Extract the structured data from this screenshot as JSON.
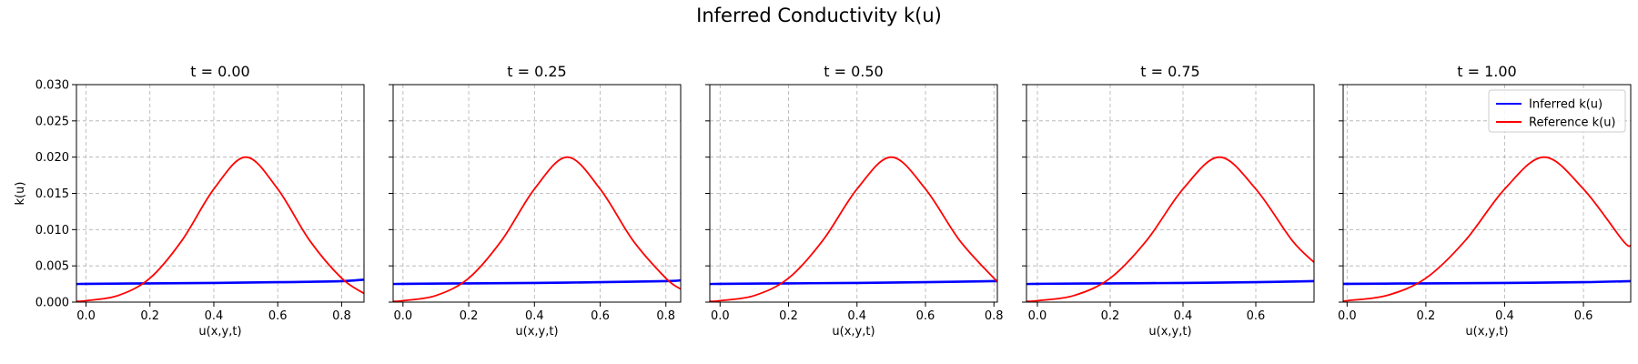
{
  "figure": {
    "suptitle": "Inferred Conductivity k(u)"
  },
  "chart_data": [
    {
      "type": "line",
      "title": "t = 0.00",
      "xlabel": "u(x,y,t)",
      "ylabel": "k(u)",
      "xlim": [
        -0.03,
        0.87
      ],
      "ylim": [
        0,
        0.03
      ],
      "xticks": [
        0.0,
        0.2,
        0.4,
        0.6,
        0.8
      ],
      "xtick_labels": [
        "0.0",
        "0.2",
        "0.4",
        "0.6",
        "0.8"
      ],
      "yticks": [
        0.0,
        0.005,
        0.01,
        0.015,
        0.02,
        0.025,
        0.03
      ],
      "ytick_labels": [
        "0.000",
        "0.005",
        "0.010",
        "0.015",
        "0.020",
        "0.025",
        "0.030"
      ],
      "grid": true,
      "legend": null,
      "series": [
        {
          "name": "Inferred k(u)",
          "color": "#0000ff",
          "x": [
            -0.03,
            0.0,
            0.2,
            0.4,
            0.6,
            0.8,
            0.87
          ],
          "y": [
            0.0025,
            0.00252,
            0.00258,
            0.00265,
            0.00275,
            0.0029,
            0.0031
          ]
        },
        {
          "name": "Reference k(u)",
          "color": "#ff0000",
          "x": [
            -0.03,
            0.0,
            0.1,
            0.2,
            0.3,
            0.4,
            0.5,
            0.6,
            0.7,
            0.8,
            0.87
          ],
          "y": [
            0.0001,
            0.0002,
            0.0009,
            0.0033,
            0.0085,
            0.0156,
            0.02,
            0.0156,
            0.0085,
            0.0033,
            0.0012
          ]
        }
      ]
    },
    {
      "type": "line",
      "title": "t = 0.25",
      "xlabel": "u(x,y,t)",
      "ylabel": "",
      "xlim": [
        -0.03,
        0.845
      ],
      "ylim": [
        0,
        0.03
      ],
      "xticks": [
        0.0,
        0.2,
        0.4,
        0.6,
        0.8
      ],
      "xtick_labels": [
        "0.0",
        "0.2",
        "0.4",
        "0.6",
        "0.8"
      ],
      "yticks": [
        0.0,
        0.005,
        0.01,
        0.015,
        0.02,
        0.025,
        0.03
      ],
      "ytick_labels": [],
      "grid": true,
      "legend": null,
      "series": [
        {
          "name": "Inferred k(u)",
          "color": "#0000ff",
          "x": [
            -0.03,
            0.0,
            0.2,
            0.4,
            0.6,
            0.8,
            0.845
          ],
          "y": [
            0.0025,
            0.00252,
            0.00258,
            0.00265,
            0.00275,
            0.0029,
            0.003
          ]
        },
        {
          "name": "Reference k(u)",
          "color": "#ff0000",
          "x": [
            -0.03,
            0.0,
            0.1,
            0.2,
            0.3,
            0.4,
            0.5,
            0.6,
            0.7,
            0.8,
            0.845
          ],
          "y": [
            0.0001,
            0.0002,
            0.0009,
            0.0033,
            0.0085,
            0.0156,
            0.02,
            0.0156,
            0.0085,
            0.0033,
            0.0018
          ]
        }
      ]
    },
    {
      "type": "line",
      "title": "t = 0.50",
      "xlabel": "u(x,y,t)",
      "ylabel": "",
      "xlim": [
        -0.03,
        0.81
      ],
      "ylim": [
        0,
        0.03
      ],
      "xticks": [
        0.0,
        0.2,
        0.4,
        0.6,
        0.8
      ],
      "xtick_labels": [
        "0.0",
        "0.2",
        "0.4",
        "0.6",
        "0.8"
      ],
      "yticks": [
        0.0,
        0.005,
        0.01,
        0.015,
        0.02,
        0.025,
        0.03
      ],
      "ytick_labels": [],
      "grid": true,
      "legend": null,
      "series": [
        {
          "name": "Inferred k(u)",
          "color": "#0000ff",
          "x": [
            -0.03,
            0.0,
            0.2,
            0.4,
            0.6,
            0.8,
            0.81
          ],
          "y": [
            0.0025,
            0.00252,
            0.00258,
            0.00265,
            0.00275,
            0.0029,
            0.003
          ]
        },
        {
          "name": "Reference k(u)",
          "color": "#ff0000",
          "x": [
            -0.03,
            0.0,
            0.1,
            0.2,
            0.3,
            0.4,
            0.5,
            0.6,
            0.7,
            0.8,
            0.81
          ],
          "y": [
            0.0001,
            0.0002,
            0.0009,
            0.0033,
            0.0085,
            0.0156,
            0.02,
            0.0156,
            0.0085,
            0.0033,
            0.003
          ]
        }
      ]
    },
    {
      "type": "line",
      "title": "t = 0.75",
      "xlabel": "u(x,y,t)",
      "ylabel": "",
      "xlim": [
        -0.03,
        0.76
      ],
      "ylim": [
        0,
        0.03
      ],
      "xticks": [
        0.0,
        0.2,
        0.4,
        0.6
      ],
      "xtick_labels": [
        "0.0",
        "0.2",
        "0.4",
        "0.6"
      ],
      "yticks": [
        0.0,
        0.005,
        0.01,
        0.015,
        0.02,
        0.025,
        0.03
      ],
      "ytick_labels": [],
      "grid": true,
      "legend": null,
      "series": [
        {
          "name": "Inferred k(u)",
          "color": "#0000ff",
          "x": [
            -0.03,
            0.0,
            0.2,
            0.4,
            0.6,
            0.76
          ],
          "y": [
            0.0025,
            0.00252,
            0.00258,
            0.00265,
            0.00275,
            0.0029
          ]
        },
        {
          "name": "Reference k(u)",
          "color": "#ff0000",
          "x": [
            -0.03,
            0.0,
            0.1,
            0.2,
            0.3,
            0.4,
            0.5,
            0.6,
            0.7,
            0.76
          ],
          "y": [
            0.0001,
            0.0002,
            0.0009,
            0.0033,
            0.0085,
            0.0156,
            0.02,
            0.0156,
            0.0085,
            0.0055
          ]
        }
      ]
    },
    {
      "type": "line",
      "title": "t = 1.00",
      "xlabel": "u(x,y,t)",
      "ylabel": "",
      "xlim": [
        -0.01,
        0.72
      ],
      "ylim": [
        0,
        0.03
      ],
      "xticks": [
        0.0,
        0.2,
        0.4,
        0.6
      ],
      "xtick_labels": [
        "0.0",
        "0.2",
        "0.4",
        "0.6"
      ],
      "yticks": [
        0.0,
        0.005,
        0.01,
        0.015,
        0.02,
        0.025,
        0.03
      ],
      "ytick_labels": [],
      "grid": true,
      "legend": "top-right",
      "series": [
        {
          "name": "Inferred k(u)",
          "color": "#0000ff",
          "x": [
            -0.01,
            0.0,
            0.2,
            0.4,
            0.6,
            0.72
          ],
          "y": [
            0.0025,
            0.00252,
            0.00258,
            0.00265,
            0.00275,
            0.0029
          ]
        },
        {
          "name": "Reference k(u)",
          "color": "#ff0000",
          "x": [
            -0.01,
            0.0,
            0.1,
            0.2,
            0.3,
            0.4,
            0.5,
            0.6,
            0.7,
            0.72
          ],
          "y": [
            0.0001,
            0.0002,
            0.0009,
            0.0033,
            0.0085,
            0.0156,
            0.02,
            0.0156,
            0.0085,
            0.0078
          ]
        }
      ]
    }
  ]
}
